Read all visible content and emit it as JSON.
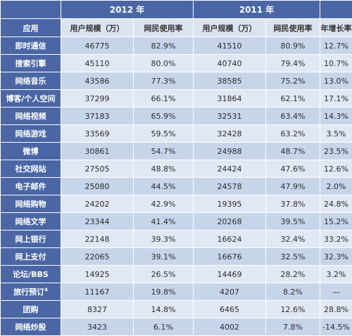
{
  "header": {
    "year_2012": "2012 年",
    "year_2011": "2011 年",
    "col_app": "应用",
    "col_users_2012": "用户规模（万）",
    "col_rate_2012": "网民使用率",
    "col_users_2011": "用户规模（万）",
    "col_rate_2011": "网民使用率",
    "col_growth": "年增长率"
  },
  "rows": [
    {
      "app": "即时通信",
      "users_2012": "46775",
      "rate_2012": "82.9%",
      "users_2011": "41510",
      "rate_2011": "80.9%",
      "growth": "12.7%"
    },
    {
      "app": "搜索引擎",
      "users_2012": "45110",
      "rate_2012": "80.0%",
      "users_2011": "40740",
      "rate_2011": "79.4%",
      "growth": "10.7%"
    },
    {
      "app": "网络音乐",
      "users_2012": "43586",
      "rate_2012": "77.3%",
      "users_2011": "38585",
      "rate_2011": "75.2%",
      "growth": "13.0%"
    },
    {
      "app": "博客/个人空间",
      "users_2012": "37299",
      "rate_2012": "66.1%",
      "users_2011": "31864",
      "rate_2011": "62.1%",
      "growth": "17.1%"
    },
    {
      "app": "网络视频",
      "users_2012": "37183",
      "rate_2012": "65.9%",
      "users_2011": "32531",
      "rate_2011": "63.4%",
      "growth": "14.3%"
    },
    {
      "app": "网络游戏",
      "users_2012": "33569",
      "rate_2012": "59.5%",
      "users_2011": "32428",
      "rate_2011": "63.2%",
      "growth": "3.5%"
    },
    {
      "app": "微博",
      "users_2012": "30861",
      "rate_2012": "54.7%",
      "users_2011": "24988",
      "rate_2011": "48.7%",
      "growth": "23.5%"
    },
    {
      "app": "社交网站",
      "users_2012": "27505",
      "rate_2012": "48.8%",
      "users_2011": "24424",
      "rate_2011": "47.6%",
      "growth": "12.6%"
    },
    {
      "app": "电子邮件",
      "users_2012": "25080",
      "rate_2012": "44.5%",
      "users_2011": "24578",
      "rate_2011": "47.9%",
      "growth": "2.0%"
    },
    {
      "app": "网络购物",
      "users_2012": "24202",
      "rate_2012": "42.9%",
      "users_2011": "19395",
      "rate_2011": "37.8%",
      "growth": "24.8%"
    },
    {
      "app": "网络文学",
      "users_2012": "23344",
      "rate_2012": "41.4%",
      "users_2011": "20268",
      "rate_2011": "39.5%",
      "growth": "15.2%"
    },
    {
      "app": "网上银行",
      "users_2012": "22148",
      "rate_2012": "39.3%",
      "users_2011": "16624",
      "rate_2011": "32.4%",
      "growth": "33.2%"
    },
    {
      "app": "网上支付",
      "users_2012": "22065",
      "rate_2012": "39.1%",
      "users_2011": "16676",
      "rate_2011": "32.5%",
      "growth": "32.3%"
    },
    {
      "app": "论坛/BBS",
      "users_2012": "14925",
      "rate_2012": "26.5%",
      "users_2011": "14469",
      "rate_2011": "28.2%",
      "growth": "3.2%"
    },
    {
      "app": "旅行预订",
      "app_sup": "4",
      "users_2012": "11167",
      "rate_2012": "19.8%",
      "users_2011": "4207",
      "rate_2011": "8.2%",
      "growth": "—"
    },
    {
      "app": "团购",
      "users_2012": "8327",
      "rate_2012": "14.8%",
      "users_2011": "6465",
      "rate_2011": "12.6%",
      "growth": "28.8%"
    },
    {
      "app": "网络炒股",
      "users_2012": "3423",
      "rate_2012": "6.1%",
      "users_2011": "4002",
      "rate_2011": "7.8%",
      "growth": "-14.5%"
    }
  ]
}
